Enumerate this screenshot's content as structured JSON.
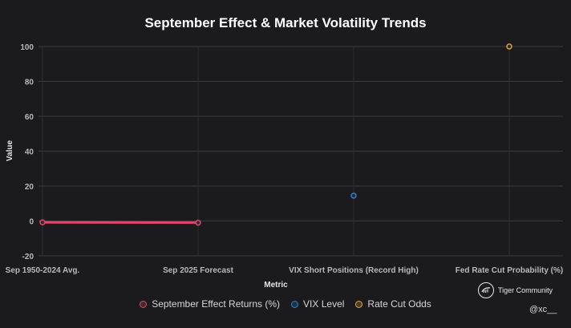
{
  "chart_data": {
    "type": "line",
    "title": "September Effect & Market Volatility Trends",
    "xlabel": "Metric",
    "ylabel": "Value",
    "categories": [
      "Sep 1950-2024 Avg.",
      "Sep 2025 Forecast",
      "VIX Short Positions (Record High)",
      "Fed Rate Cut Probability (%)"
    ],
    "ylim": [
      -20,
      100
    ],
    "yticks": [
      "-20",
      "0",
      "20",
      "40",
      "60",
      "80",
      "100"
    ],
    "series": [
      {
        "name": "September Effect Returns (%)",
        "color": "#d94a6a",
        "values": [
          -0.8,
          -1.0,
          null,
          null
        ]
      },
      {
        "name": "VIX Level",
        "color": "#2f7fc1",
        "values": [
          null,
          null,
          14.5,
          null
        ]
      },
      {
        "name": "Rate Cut Odds",
        "color": "#d9a53a",
        "values": [
          null,
          null,
          null,
          100
        ]
      }
    ],
    "grid": true,
    "legend_position": "bottom"
  },
  "watermark": {
    "brand": "Tiger Community",
    "handle": "@xc__",
    "icon": "tiger-logo-icon"
  }
}
